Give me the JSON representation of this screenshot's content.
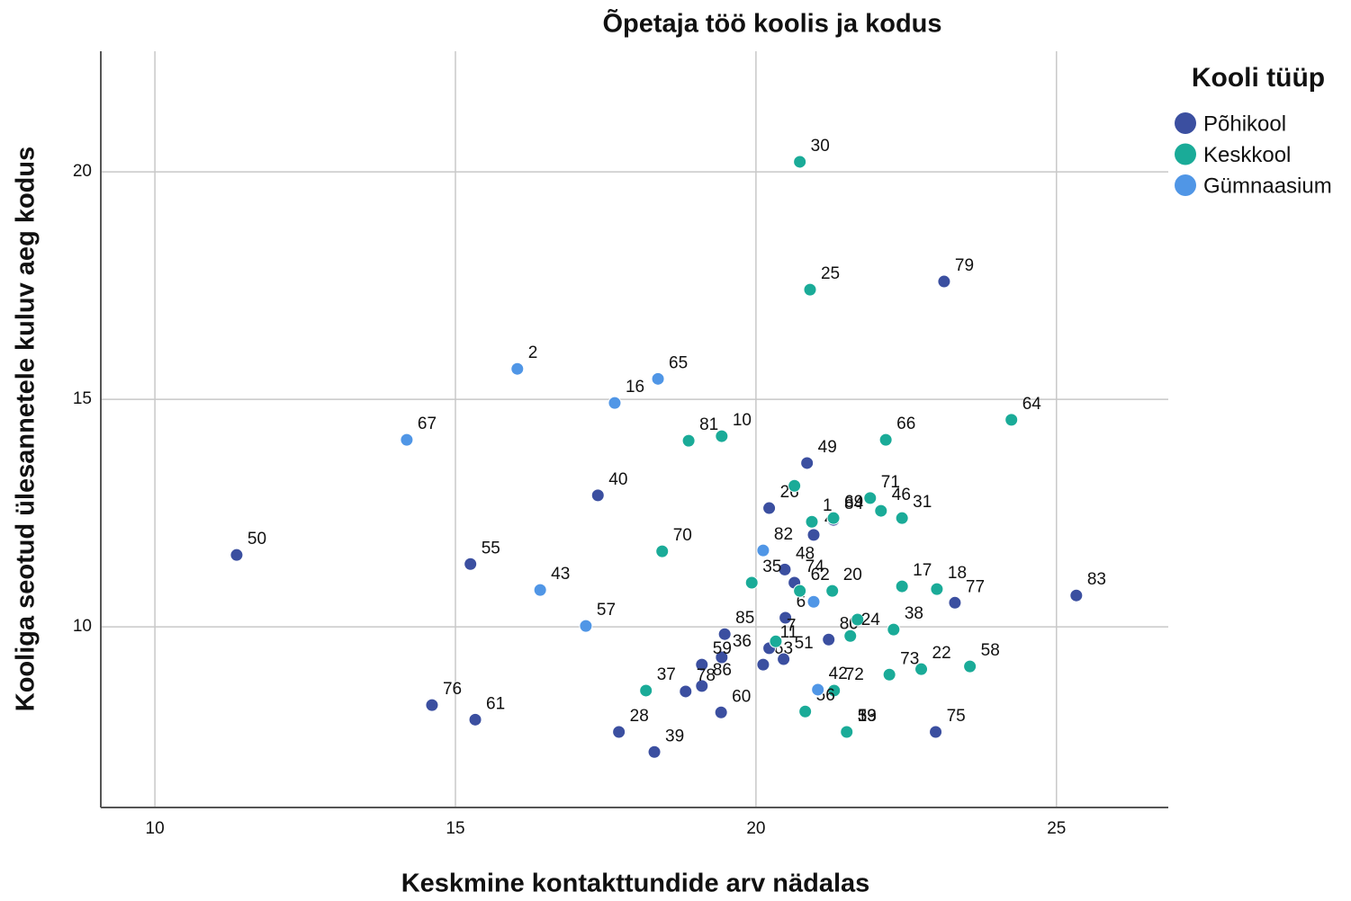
{
  "chart_data": {
    "type": "scatter",
    "title": "Õpetaja töö koolis ja kodus",
    "x_label": "Keskmine kontakttundide arv nädalas",
    "y_label": "Kooliga seotud ülesannetele kuluv aeg kodus",
    "legend_title": "Kooli tüüp",
    "xlim": [
      9.1,
      26.86
    ],
    "ylim": [
      6.03,
      22.65
    ],
    "xticks": [
      10,
      15,
      20,
      25
    ],
    "yticks": [
      10,
      15,
      20
    ],
    "grid": true,
    "series": [
      {
        "name": "Põhikool",
        "color": "#3b4fa0",
        "x": [
          23.13,
          20.85,
          17.37,
          20.22,
          11.36,
          15.25,
          20.96,
          20.48,
          20.64,
          20.49,
          25.33,
          23.31,
          21.21,
          19.48,
          19.43,
          19.1,
          19.1,
          18.83,
          19.42,
          20.12,
          20.46,
          20.22,
          17.72,
          18.31,
          21.51,
          21.51,
          22.99,
          14.61,
          15.33,
          21.29
        ],
        "y": [
          17.59,
          13.6,
          12.89,
          12.61,
          11.58,
          11.38,
          12.02,
          11.26,
          10.97,
          10.2,
          10.69,
          10.53,
          9.72,
          9.84,
          9.33,
          9.17,
          8.7,
          8.58,
          8.12,
          9.17,
          9.29,
          9.53,
          7.69,
          7.25,
          7.69,
          7.69,
          7.69,
          8.28,
          7.96,
          12.35
        ],
        "labels": [
          "79",
          "49",
          "40",
          "26",
          "50",
          "55",
          "4",
          "48",
          "74",
          "6",
          "83",
          "77",
          "80",
          "85",
          "36",
          "59",
          "86",
          "78",
          "60",
          "63",
          "51",
          "11",
          "28",
          "39",
          "5",
          "33",
          "75",
          "76",
          "61",
          "84"
        ]
      },
      {
        "name": "Keskkool",
        "color": "#1aab98",
        "x": [
          20.73,
          20.9,
          24.25,
          22.16,
          18.88,
          19.43,
          21.9,
          22.08,
          22.43,
          20.64,
          20.93,
          21.29,
          18.44,
          19.93,
          20.73,
          21.27,
          22.43,
          23.01,
          21.69,
          21.57,
          22.29,
          20.33,
          22.75,
          23.56,
          22.22,
          21.3,
          18.17,
          20.82,
          21.51
        ],
        "y": [
          20.22,
          17.41,
          14.55,
          14.11,
          14.09,
          14.19,
          12.83,
          12.55,
          12.39,
          13.1,
          12.31,
          12.39,
          11.66,
          10.97,
          10.79,
          10.79,
          10.89,
          10.83,
          10.16,
          9.8,
          9.94,
          9.68,
          9.07,
          9.13,
          8.95,
          8.6,
          8.6,
          8.14,
          7.69
        ],
        "labels": [
          "30",
          "25",
          "64",
          "66",
          "81",
          "10",
          "71",
          "46",
          "31",
          null,
          "1",
          "69",
          "70",
          "35",
          "62",
          "20",
          "17",
          "18",
          null,
          "24",
          "38",
          "7",
          "22",
          "58",
          "73",
          "72",
          "37",
          "56",
          "19"
        ]
      },
      {
        "name": "Gümnaasium",
        "color": "#5096e6",
        "x": [
          16.03,
          18.37,
          17.65,
          14.19,
          20.12,
          16.41,
          17.17,
          20.96,
          21.03
        ],
        "y": [
          15.67,
          15.45,
          14.92,
          14.11,
          11.68,
          10.81,
          10.02,
          10.55,
          8.62
        ],
        "labels": [
          "2",
          "65",
          "16",
          "67",
          "82",
          "43",
          "57",
          null,
          "42"
        ]
      }
    ]
  }
}
